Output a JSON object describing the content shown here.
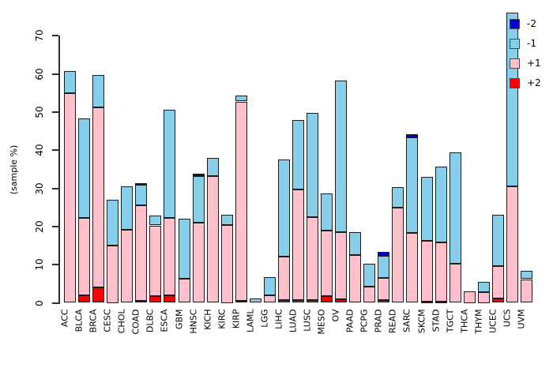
{
  "y_axis": {
    "label": "(sample %)",
    "tick_labels": [
      "0",
      "10",
      "20",
      "30",
      "40",
      "50",
      "60",
      "70"
    ],
    "tick_values": [
      0,
      10,
      20,
      30,
      40,
      50,
      60,
      70
    ]
  },
  "legend": {
    "items": [
      {
        "label": "-2",
        "color": "#0000CD"
      },
      {
        "label": "-1",
        "color": "#87CEEB"
      },
      {
        "label": "+1",
        "color": "#FFC0CB"
      },
      {
        "label": "+2",
        "color": "#FF0000"
      }
    ]
  },
  "chart_data": {
    "type": "bar",
    "stacked": true,
    "title": "",
    "xlabel": "",
    "ylabel": "(sample %)",
    "ylim": [
      0,
      70
    ],
    "grid": false,
    "legend_position": "top-right",
    "stack_order_bottom_to_top": [
      "+2",
      "+1",
      "-1",
      "-2"
    ],
    "categories": [
      "ACC",
      "BLCA",
      "BRCA",
      "CESC",
      "CHOL",
      "COAD",
      "DLBC",
      "ESCA",
      "GBM",
      "HNSC",
      "KICH",
      "KIRC",
      "KIRP",
      "LAML",
      "LGG",
      "LIHC",
      "LUAD",
      "LUSC",
      "MESO",
      "OV",
      "PAAD",
      "PCPG",
      "PRAD",
      "READ",
      "SARC",
      "SKCM",
      "STAD",
      "TGCT",
      "THCA",
      "THYM",
      "UCEC",
      "UCS",
      "UVM"
    ],
    "series": [
      {
        "name": "+2",
        "color": "#FF0000",
        "values": [
          0,
          2,
          4,
          0,
          0,
          0.5,
          1.7,
          2,
          0,
          0,
          0,
          0,
          0.5,
          0,
          0,
          0.8,
          0.7,
          0.8,
          1.7,
          1,
          0,
          0,
          0.7,
          0,
          0,
          0.3,
          0.3,
          0,
          0,
          0,
          1.2,
          0,
          0
        ]
      },
      {
        "name": "+1",
        "color": "#FFC0CB",
        "values": [
          55,
          20.3,
          47.3,
          15,
          19.1,
          25,
          18.6,
          20.2,
          6.3,
          21,
          33.2,
          20.4,
          52.3,
          0,
          2,
          11.4,
          29,
          21.6,
          17.3,
          17.6,
          12.5,
          4.2,
          5.8,
          24.9,
          18.3,
          16,
          15.5,
          10.3,
          3.1,
          2.8,
          8.5,
          30.5,
          6.2
        ]
      },
      {
        "name": "-1",
        "color": "#87CEEB",
        "values": [
          5.7,
          26,
          8.5,
          12,
          11.4,
          5.4,
          2.5,
          28.5,
          15.7,
          12.3,
          4.7,
          2.6,
          1.5,
          1.2,
          4.8,
          25.3,
          18.2,
          27.3,
          9.6,
          39.6,
          6,
          6.1,
          5.9,
          5.4,
          25,
          16.8,
          19.9,
          29.1,
          0,
          2.7,
          13.3,
          45.7,
          2.1
        ]
      },
      {
        "name": "-2",
        "color": "#0000CD",
        "values": [
          0,
          0,
          0,
          0,
          0,
          0.5,
          0,
          0,
          0,
          0.5,
          0,
          0,
          0,
          0,
          0,
          0,
          0,
          0,
          0,
          0,
          0,
          0,
          1,
          0,
          0.9,
          0,
          0,
          0,
          0,
          0,
          0,
          0,
          0
        ]
      }
    ]
  }
}
